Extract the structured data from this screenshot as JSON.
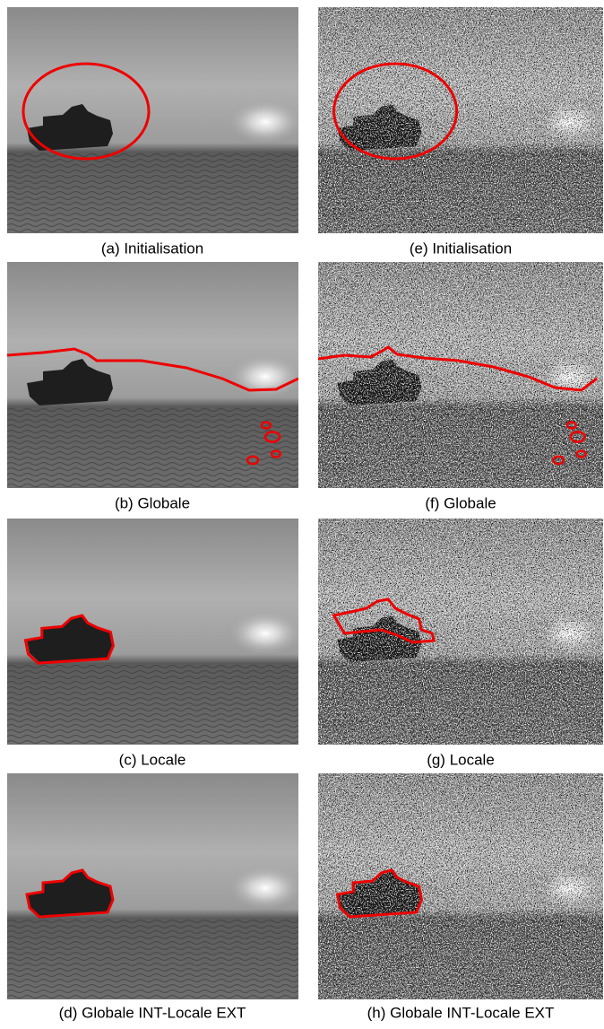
{
  "panels": [
    {
      "caption": "(a) Initialisation"
    },
    {
      "caption": "(b) Globale"
    },
    {
      "caption": "(c) Locale"
    },
    {
      "caption": "(d) Globale INT-Locale EXT"
    },
    {
      "caption": "(e) Initialisation"
    },
    {
      "caption": "(f) Globale"
    },
    {
      "caption": "(g) Locale"
    },
    {
      "caption": "(h) Globale INT-Locale EXT"
    }
  ]
}
